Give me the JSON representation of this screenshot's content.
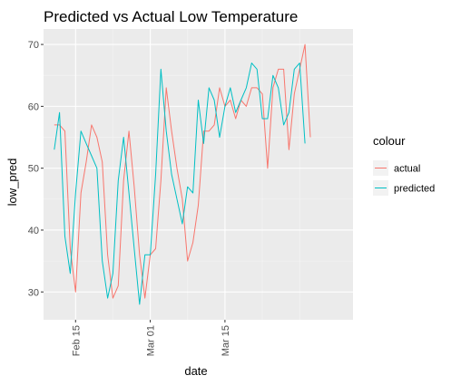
{
  "chart_data": {
    "type": "line",
    "title": "Predicted vs Actual Low Temperature",
    "xlabel": "date",
    "ylabel": "low_pred",
    "x_ticks": [
      "Feb 15",
      "Mar 01",
      "Mar 15"
    ],
    "y_ticks": [
      30,
      40,
      50,
      60,
      70
    ],
    "xlim": [
      "2019-02-09",
      "2019-04-08"
    ],
    "ylim": [
      25.5,
      72.5
    ],
    "grid": true,
    "legend": {
      "title": "colour",
      "placement": "right"
    },
    "x": [
      "2019-02-11",
      "2019-02-12",
      "2019-02-13",
      "2019-02-14",
      "2019-02-15",
      "2019-02-16",
      "2019-02-17",
      "2019-02-18",
      "2019-02-19",
      "2019-02-20",
      "2019-02-21",
      "2019-02-22",
      "2019-02-23",
      "2019-02-24",
      "2019-02-25",
      "2019-02-26",
      "2019-02-27",
      "2019-02-28",
      "2019-03-01",
      "2019-03-02",
      "2019-03-03",
      "2019-03-04",
      "2019-03-05",
      "2019-03-06",
      "2019-03-07",
      "2019-03-08",
      "2019-03-09",
      "2019-03-10",
      "2019-03-11",
      "2019-03-12",
      "2019-03-13",
      "2019-03-14",
      "2019-03-15",
      "2019-03-16",
      "2019-03-17",
      "2019-03-18",
      "2019-03-19",
      "2019-03-20",
      "2019-03-21",
      "2019-03-22",
      "2019-03-23",
      "2019-03-24",
      "2019-03-25",
      "2019-03-26",
      "2019-03-27",
      "2019-03-28",
      "2019-03-29",
      "2019-03-30",
      "2019-03-31",
      "2019-04-01",
      "2019-04-02",
      "2019-04-03",
      "2019-04-04",
      "2019-04-05",
      "2019-04-06",
      "2019-04-07"
    ],
    "series": [
      {
        "name": "actual",
        "color": "#f8766d",
        "values": [
          57,
          57,
          56,
          37,
          30,
          46,
          51,
          57,
          55,
          51,
          36,
          29,
          31,
          48,
          56,
          47,
          36,
          29,
          36,
          37,
          48,
          63,
          56,
          50,
          45,
          35,
          38,
          44,
          56,
          56,
          57,
          63,
          60,
          61,
          58,
          61,
          60,
          63,
          63,
          62,
          50,
          63,
          66,
          66,
          53,
          62,
          66,
          70,
          55,
          null,
          null,
          null,
          null,
          null,
          null,
          null
        ]
      },
      {
        "name": "predicted",
        "color": "#00bfc4",
        "values": [
          53,
          59,
          39,
          33,
          46,
          56,
          54,
          52,
          50,
          35,
          29,
          33,
          48,
          55,
          46,
          37,
          28,
          36,
          36,
          49,
          66,
          56,
          49,
          45,
          41,
          47,
          46,
          61,
          54,
          63,
          61,
          55,
          60,
          63,
          59,
          61,
          63,
          67,
          66,
          58,
          58,
          65,
          63,
          57,
          59,
          66,
          67,
          54,
          null,
          null,
          null,
          null,
          null,
          null,
          null,
          null
        ]
      }
    ]
  }
}
